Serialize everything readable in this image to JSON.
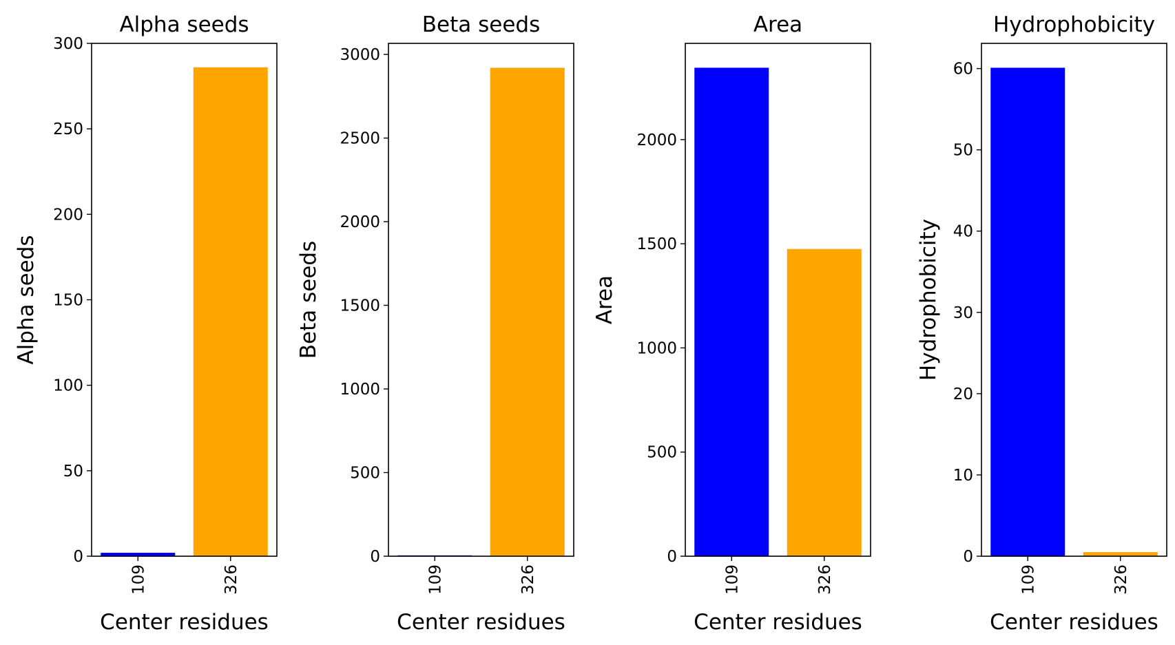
{
  "colors": {
    "bar_109": "#0000ff",
    "bar_326": "#ffa500",
    "axis": "#000000"
  },
  "chart_data": [
    {
      "type": "bar",
      "title": "Alpha seeds",
      "xlabel": "Center residues",
      "ylabel": "Alpha seeds",
      "categories": [
        "109",
        "326"
      ],
      "values": [
        2,
        286
      ],
      "ylim": [
        0,
        300
      ],
      "yticks": [
        0,
        50,
        100,
        150,
        200,
        250,
        300
      ],
      "grid": false,
      "legend": "none"
    },
    {
      "type": "bar",
      "title": "Beta seeds",
      "xlabel": "Center residues",
      "ylabel": "Beta seeds",
      "categories": [
        "109",
        "326"
      ],
      "values": [
        5,
        2920
      ],
      "ylim": [
        0,
        3066
      ],
      "yticks": [
        0,
        500,
        1000,
        1500,
        2000,
        2500,
        3000
      ],
      "grid": false,
      "legend": "none"
    },
    {
      "type": "bar",
      "title": "Area",
      "xlabel": "Center residues",
      "ylabel": "Area",
      "categories": [
        "109",
        "326"
      ],
      "values": [
        2345,
        1475
      ],
      "ylim": [
        0,
        2462
      ],
      "yticks": [
        0,
        500,
        1000,
        1500,
        2000
      ],
      "grid": false,
      "legend": "none"
    },
    {
      "type": "bar",
      "title": "Hydrophobicity",
      "xlabel": "Center residues",
      "ylabel": "Hydrophobicity",
      "categories": [
        "109",
        "326"
      ],
      "values": [
        60.1,
        0.5
      ],
      "ylim": [
        0,
        63.1
      ],
      "yticks": [
        0,
        10,
        20,
        30,
        40,
        50,
        60
      ],
      "grid": false,
      "legend": "none"
    }
  ]
}
